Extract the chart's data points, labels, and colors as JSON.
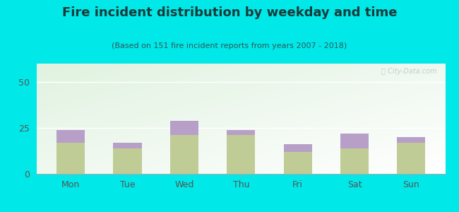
{
  "title": "Fire incident distribution by weekday and time",
  "subtitle": "(Based on 151 fire incident reports from years 2007 - 2018)",
  "days": [
    "Mon",
    "Tue",
    "Wed",
    "Thu",
    "Fri",
    "Sat",
    "Sun"
  ],
  "pm_values": [
    17,
    14,
    21,
    21,
    12,
    14,
    17
  ],
  "am_values": [
    7,
    3,
    8,
    3,
    4,
    8,
    3
  ],
  "am_color": "#b89fc8",
  "pm_color": "#c0cc96",
  "background_outer": "#00e8e8",
  "ylim": [
    0,
    60
  ],
  "yticks": [
    0,
    25,
    50
  ],
  "bar_width": 0.5,
  "title_fontsize": 13,
  "subtitle_fontsize": 8,
  "tick_fontsize": 9,
  "legend_fontsize": 9,
  "title_color": "#1a3a3a",
  "subtitle_color": "#2a5a5a",
  "tick_color": "#555555",
  "watermark": "City-Data.com"
}
